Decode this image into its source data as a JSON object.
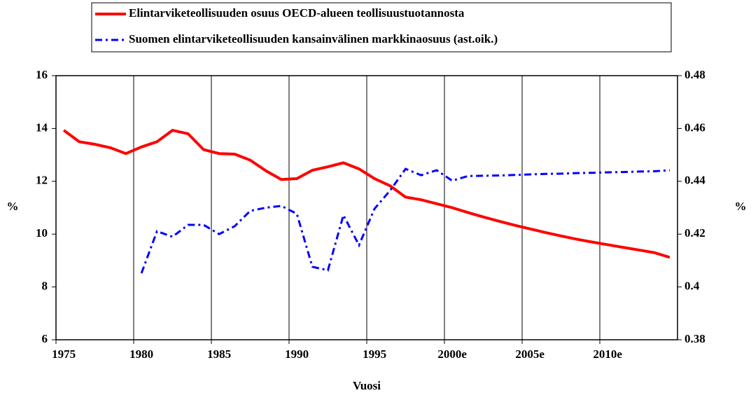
{
  "chart_data": {
    "type": "line",
    "categories": [
      "1975",
      null,
      null,
      null,
      null,
      "1980",
      null,
      null,
      null,
      null,
      "1985",
      null,
      null,
      null,
      null,
      "1990",
      null,
      null,
      null,
      null,
      "1995",
      null,
      null,
      null,
      null,
      "2000e",
      null,
      null,
      null,
      null,
      "2005e",
      null,
      null,
      null,
      null,
      "2010e",
      null,
      null,
      null,
      null
    ],
    "series": [
      {
        "name": "Elintarviketeollisuuden osuus OECD-alueen teollisuustuotannosta",
        "color": "#ff0000",
        "axis": "y",
        "values": [
          13.93,
          13.5,
          13.4,
          13.27,
          13.05,
          13.3,
          13.5,
          13.93,
          13.8,
          13.2,
          13.05,
          13.03,
          12.8,
          12.4,
          12.07,
          12.1,
          12.42,
          12.55,
          12.7,
          12.47,
          12.1,
          11.83,
          11.4,
          11.3,
          11.15,
          11.0,
          10.82,
          10.65,
          10.49,
          10.34,
          10.2,
          10.06,
          9.93,
          9.81,
          9.7,
          9.6,
          9.5,
          9.4,
          9.3,
          9.12
        ]
      },
      {
        "name": "Suomen elintarviketeollisuuden kansainvälinen markkinaosuus (ast.oik.)",
        "color": "#0000ff",
        "axis": "y2",
        "values": [
          null,
          null,
          null,
          null,
          null,
          0.4052,
          0.4211,
          0.419,
          0.4235,
          0.4235,
          0.42,
          0.423,
          0.4288,
          0.43,
          0.4307,
          0.4277,
          0.4076,
          0.4063,
          0.4272,
          0.4158,
          0.4296,
          0.4365,
          0.4447,
          0.4423,
          0.4442,
          0.4402,
          0.442,
          0.4421,
          0.4422,
          0.4424,
          0.4426,
          0.4428,
          0.4429,
          0.4431,
          0.4432,
          0.4434,
          0.4435,
          0.4437,
          0.4438,
          0.4442
        ]
      }
    ],
    "x_label": "Vuosi",
    "y_label": "%",
    "y2_label": "%",
    "ylim": [
      6,
      16
    ],
    "yticks": [
      6,
      8,
      10,
      12,
      14,
      16
    ],
    "y2lim": [
      0.38,
      0.48
    ],
    "y2ticks": [
      0.38,
      0.4,
      0.42,
      0.44,
      0.46,
      0.48
    ],
    "legend": "top"
  }
}
